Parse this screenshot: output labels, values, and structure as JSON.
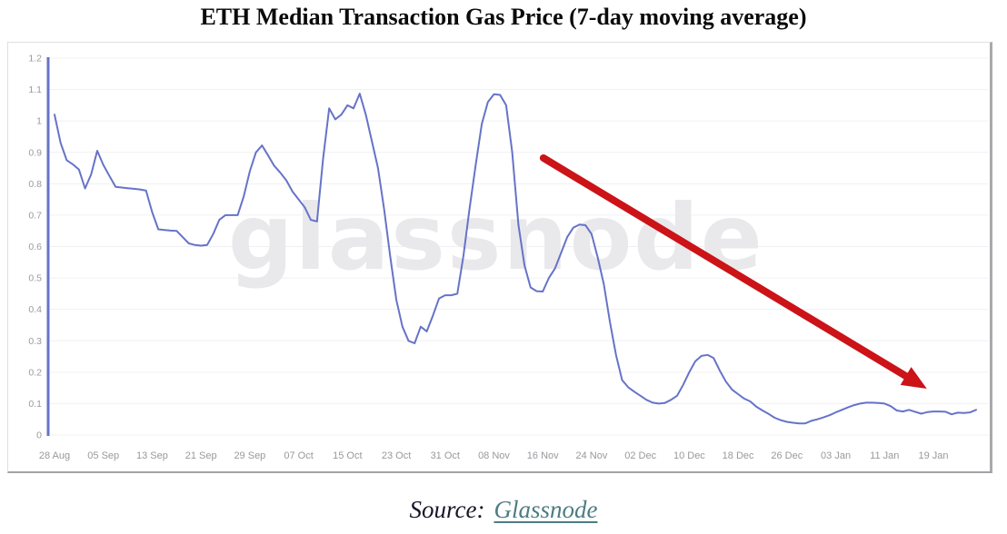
{
  "title": "ETH Median Transaction Gas Price (7-day moving average)",
  "watermark": "glassnode",
  "source": {
    "prefix": "Source:",
    "link_text": "Glassnode"
  },
  "chart_data": {
    "type": "line",
    "title": "ETH Median Transaction Gas Price (7-day moving average)",
    "series_name": "ETH median transaction gas price, 7-day moving average",
    "x_start_label": "28 Aug",
    "x_end_label": "26 Jan",
    "x_interval_days": 1,
    "x_tick_labels": [
      "28 Aug",
      "05 Sep",
      "13 Sep",
      "21 Sep",
      "29 Sep",
      "07 Oct",
      "15 Oct",
      "23 Oct",
      "31 Oct",
      "08 Nov",
      "16 Nov",
      "24 Nov",
      "02 Dec",
      "10 Dec",
      "18 Dec",
      "26 Dec",
      "03 Jan",
      "11 Jan",
      "19 Jan"
    ],
    "x_ticks_every_n_points": 8,
    "y_tick_values": [
      0,
      0.1,
      0.2,
      0.3,
      0.4,
      0.5,
      0.6,
      0.7,
      0.8,
      0.9,
      1.0,
      1.1,
      1.2
    ],
    "y_tick_labels": [
      "0",
      "0.1",
      "0.2",
      "0.3",
      "0.4",
      "0.5",
      "0.6",
      "0.7",
      "0.8",
      "0.9",
      "1",
      "1.1",
      "1.2"
    ],
    "ylim": [
      0,
      1.2
    ],
    "grid": "horizontal",
    "legend": "none",
    "line_color": "#6673c8",
    "values": [
      1.02,
      0.93,
      0.875,
      0.862,
      0.845,
      0.785,
      0.83,
      0.905,
      0.86,
      0.825,
      0.79,
      0.788,
      0.786,
      0.784,
      0.782,
      0.778,
      0.71,
      0.655,
      0.653,
      0.651,
      0.65,
      0.63,
      0.61,
      0.605,
      0.603,
      0.605,
      0.64,
      0.685,
      0.7,
      0.7,
      0.7,
      0.76,
      0.84,
      0.9,
      0.922,
      0.89,
      0.857,
      0.835,
      0.81,
      0.775,
      0.75,
      0.725,
      0.685,
      0.68,
      0.88,
      1.04,
      1.005,
      1.02,
      1.05,
      1.04,
      1.087,
      1.02,
      0.935,
      0.85,
      0.72,
      0.57,
      0.43,
      0.345,
      0.3,
      0.292,
      0.345,
      0.33,
      0.38,
      0.435,
      0.445,
      0.445,
      0.45,
      0.57,
      0.72,
      0.86,
      0.99,
      1.06,
      1.085,
      1.083,
      1.05,
      0.9,
      0.67,
      0.54,
      0.47,
      0.458,
      0.457,
      0.5,
      0.53,
      0.58,
      0.63,
      0.66,
      0.67,
      0.668,
      0.64,
      0.565,
      0.48,
      0.36,
      0.255,
      0.175,
      0.152,
      0.138,
      0.125,
      0.112,
      0.103,
      0.1,
      0.102,
      0.112,
      0.125,
      0.16,
      0.2,
      0.235,
      0.252,
      0.255,
      0.245,
      0.205,
      0.17,
      0.145,
      0.13,
      0.116,
      0.107,
      0.09,
      0.078,
      0.067,
      0.055,
      0.047,
      0.042,
      0.039,
      0.037,
      0.037,
      0.045,
      0.05,
      0.056,
      0.063,
      0.072,
      0.08,
      0.088,
      0.095,
      0.1,
      0.103,
      0.103,
      0.102,
      0.1,
      0.092,
      0.078,
      0.075,
      0.08,
      0.074,
      0.068,
      0.073,
      0.075,
      0.075,
      0.074,
      0.066,
      0.071,
      0.07,
      0.072,
      0.08
    ],
    "annotation": {
      "type": "arrow",
      "description": "red downtrend arrow",
      "color": "#cb1318",
      "direction": "down-right",
      "from_frac": {
        "x": 0.527,
        "y": 0.265
      },
      "to_frac": {
        "x": 0.935,
        "y": 0.877
      }
    }
  }
}
